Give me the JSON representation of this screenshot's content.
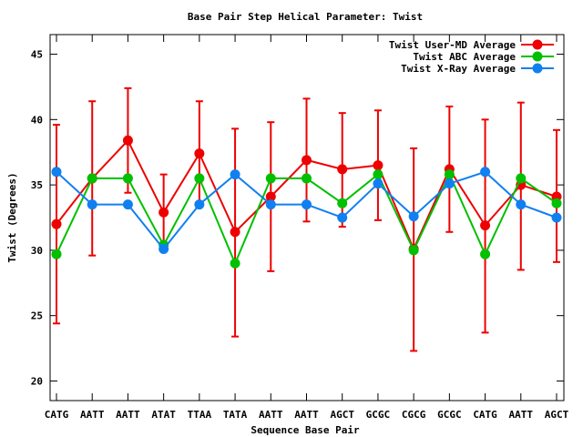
{
  "chart_data": {
    "type": "line",
    "title": "Base Pair Step Helical Parameter: Twist",
    "xlabel": "Sequence Base Pair",
    "ylabel": "Twist (Degrees)",
    "ylim": [
      18.5,
      46.5
    ],
    "yticks": [
      20,
      25,
      30,
      35,
      40,
      45
    ],
    "categories": [
      "CATG",
      "AATT",
      "AATT",
      "ATAT",
      "TTAA",
      "TATA",
      "AATT",
      "AATT",
      "AGCT",
      "GCGC",
      "CGCG",
      "GCGC",
      "CATG",
      "AATT",
      "AGCT"
    ],
    "grid": false,
    "legend_position": "top-right",
    "series": [
      {
        "name": "Twist User-MD Average",
        "color": "#ee0000",
        "values": [
          32.0,
          35.5,
          38.4,
          32.9,
          37.4,
          31.4,
          34.1,
          36.9,
          36.2,
          36.5,
          30.1,
          36.2,
          31.9,
          35.0,
          34.1
        ],
        "err_low": [
          24.4,
          29.6,
          34.4,
          30.0,
          33.4,
          23.4,
          28.4,
          32.2,
          31.8,
          32.3,
          22.3,
          31.4,
          23.7,
          28.5,
          29.1
        ],
        "err_high": [
          39.6,
          41.4,
          42.4,
          35.8,
          41.4,
          39.3,
          39.8,
          41.6,
          40.5,
          40.7,
          37.8,
          41.0,
          40.0,
          41.3,
          39.2
        ]
      },
      {
        "name": "Twist ABC Average",
        "color": "#00c000",
        "values": [
          29.7,
          35.5,
          35.5,
          30.4,
          35.5,
          29.0,
          35.5,
          35.5,
          33.6,
          35.8,
          30.0,
          35.8,
          29.7,
          35.5,
          33.6
        ]
      },
      {
        "name": "Twist X-Ray Average",
        "color": "#1080f0",
        "values": [
          36.0,
          33.5,
          33.5,
          30.1,
          33.5,
          35.8,
          33.5,
          33.5,
          32.5,
          35.1,
          32.6,
          35.1,
          36.0,
          33.5,
          32.5
        ]
      }
    ]
  }
}
